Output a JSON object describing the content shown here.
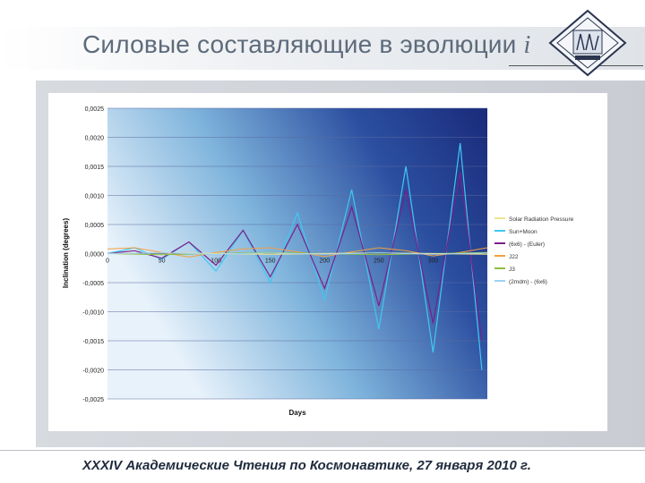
{
  "slide": {
    "title": "Силовые составляющие в эволюции",
    "title_variable": "i",
    "footer": "XXXIV Академические Чтения по Космонавтике, 27 января 2010 г."
  },
  "logo": {
    "icon": "institute-emblem-icon"
  },
  "chart_data": {
    "type": "line",
    "xlabel": "Days",
    "ylabel": "Inclination (degrees)",
    "xlim": [
      0,
      350
    ],
    "ylim": [
      -0.0025,
      0.0025
    ],
    "x_ticks": [
      "0",
      "50",
      "100",
      "150",
      "200",
      "250",
      "300"
    ],
    "y_ticks": [
      "0,0025",
      "0,0020",
      "0,0015",
      "0,0010",
      "0,0005",
      "0,0000",
      "-0,0005",
      "-0,0010",
      "-0,0015",
      "-0,0020",
      "-0,0025"
    ],
    "grid": true,
    "legend_position": "right",
    "colors": {
      "background_dark": "#1a2a7a",
      "background_light": "#e8f2fb",
      "grid": "#5a6aa0"
    },
    "series": [
      {
        "name": "Solar Radiation Pressure",
        "color": "#f0e68c",
        "x": [
          0,
          50,
          100,
          150,
          200,
          250,
          300,
          350
        ],
        "y": [
          0,
          1e-05,
          0,
          -1e-05,
          0,
          1e-05,
          0,
          -1e-05
        ]
      },
      {
        "name": "Sun+Moon",
        "color": "#40c8f0",
        "x": [
          0,
          25,
          50,
          75,
          100,
          125,
          150,
          175,
          200,
          225,
          250,
          275,
          300,
          325,
          345
        ],
        "y": [
          0,
          0.0001,
          -0.0001,
          0.0002,
          -0.0003,
          0.0004,
          -0.0005,
          0.0007,
          -0.0008,
          0.0011,
          -0.0013,
          0.0015,
          -0.0017,
          0.0019,
          -0.002
        ]
      },
      {
        "name": "(6x6) - (Euler)",
        "color": "#7b1f8a",
        "x": [
          0,
          25,
          50,
          75,
          100,
          125,
          150,
          175,
          200,
          225,
          250,
          275,
          300,
          325,
          345
        ],
        "y": [
          0,
          5e-05,
          -8e-05,
          0.0002,
          -0.0002,
          0.0004,
          -0.0004,
          0.0005,
          -0.0006,
          0.0008,
          -0.0009,
          0.0011,
          -0.0012,
          0.0014,
          -0.0015
        ]
      },
      {
        "name": "J22",
        "color": "#f4a040",
        "x": [
          0,
          25,
          50,
          75,
          100,
          125,
          150,
          175,
          200,
          225,
          250,
          275,
          300,
          325,
          350
        ],
        "y": [
          8e-05,
          0.0001,
          2e-05,
          -6e-05,
          2e-05,
          8e-05,
          0.0001,
          3e-05,
          -5e-05,
          3e-05,
          0.0001,
          5e-05,
          -4e-05,
          2e-05,
          0.0001
        ]
      },
      {
        "name": "J3",
        "color": "#8fbf3f",
        "x": [
          0,
          50,
          100,
          150,
          200,
          250,
          300,
          350
        ],
        "y": [
          0,
          -2e-05,
          0,
          2e-05,
          0,
          -2e-05,
          0,
          2e-05
        ]
      },
      {
        "name": "(2mdm) - (6x6)",
        "color": "#9ad0f5",
        "x": [
          0,
          50,
          100,
          150,
          200,
          250,
          300,
          350
        ],
        "y": [
          0,
          1e-05,
          -1e-05,
          1e-05,
          -1e-05,
          1e-05,
          -1e-05,
          1e-05
        ]
      }
    ]
  }
}
